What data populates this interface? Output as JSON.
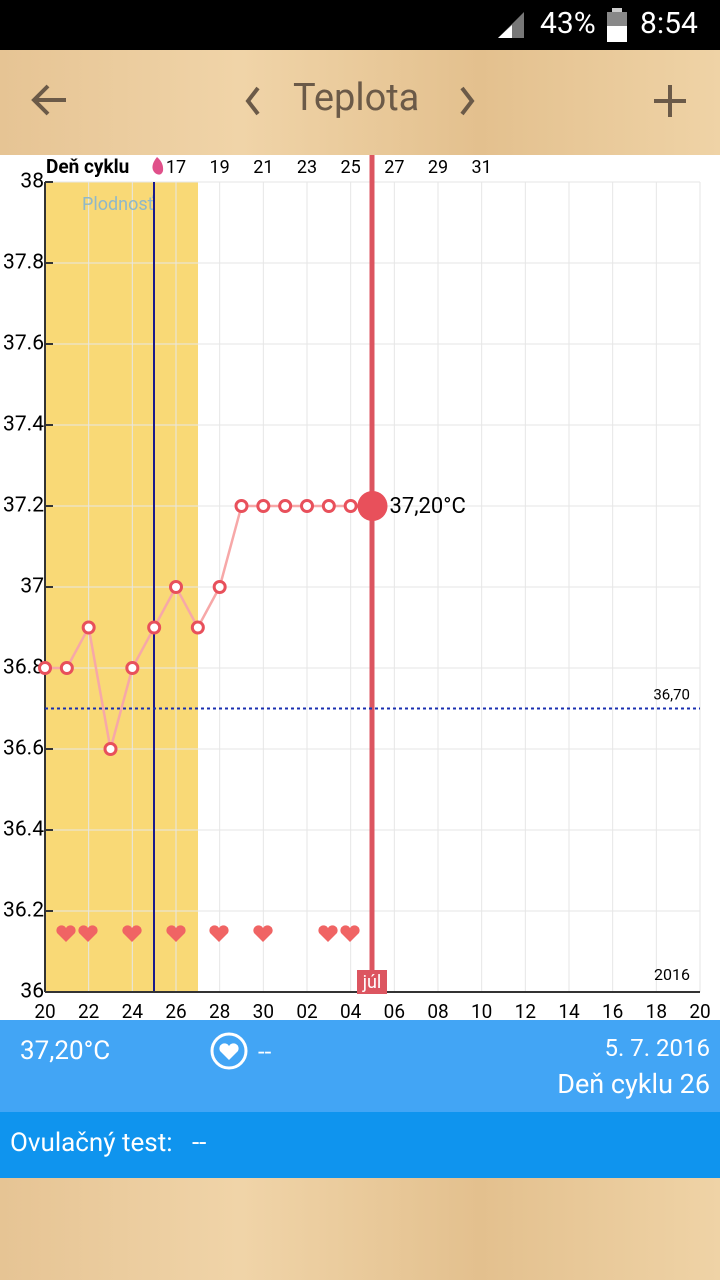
{
  "status_bar": {
    "battery": "43%",
    "time": "8:54"
  },
  "header": {
    "title": "Teplota"
  },
  "chart_data": {
    "type": "line",
    "top_axis_label": "Deň cyklu",
    "fertility_label": "Plodnosť",
    "categories": [
      "20",
      null,
      "22",
      null,
      "24",
      null,
      "26",
      null,
      "28",
      null,
      "30",
      null,
      "02",
      null,
      "04",
      null,
      "06",
      null,
      "08",
      null,
      "10",
      null,
      "12",
      null,
      "14",
      null,
      "16",
      null,
      "18",
      null,
      "20"
    ],
    "cycle_days": [
      null,
      null,
      null,
      null,
      null,
      null,
      "17",
      null,
      "19",
      null,
      "21",
      null,
      "23",
      null,
      "25",
      null,
      "27",
      null,
      "29",
      null,
      "31",
      null,
      null,
      null,
      null,
      null,
      null,
      null,
      null,
      null,
      null
    ],
    "series": [
      {
        "color": "#e8505b",
        "values": [
          36.8,
          36.8,
          36.9,
          36.6,
          36.8,
          36.9,
          37.0,
          36.9,
          37.0,
          37.2,
          37.2,
          37.2,
          37.2,
          37.2,
          37.2,
          37.2,
          null,
          null,
          null,
          null,
          null,
          null,
          null,
          null,
          null,
          null,
          null,
          null,
          null,
          null,
          null
        ],
        "value_labels": [
          null,
          null,
          null,
          null,
          null,
          null,
          null,
          null,
          null,
          null,
          null,
          null,
          null,
          null,
          null,
          "37,20°C",
          null,
          null,
          null,
          null,
          null,
          null,
          null,
          null,
          null,
          null,
          null,
          null,
          null,
          null,
          null
        ]
      }
    ],
    "ylim": [
      36,
      38
    ],
    "yticks": [
      36,
      36.2,
      36.4,
      36.6,
      36.8,
      37,
      37.2,
      37.4,
      37.6,
      37.8,
      38
    ],
    "reference_line": {
      "value": 36.7,
      "label": "36,70"
    },
    "month_label": "júl",
    "year_label": "2016",
    "grid": true
  },
  "summary": {
    "temperature": "37,20°C",
    "intercourse": "--",
    "date": "5. 7. 2016",
    "cycle_day": "Deň cyklu 26"
  },
  "ovulation_test": {
    "label": "Ovulačný test:",
    "value": "--"
  }
}
